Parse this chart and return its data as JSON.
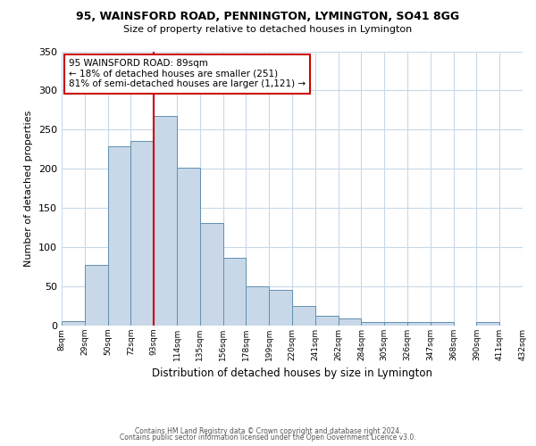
{
  "title1": "95, WAINSFORD ROAD, PENNINGTON, LYMINGTON, SO41 8GG",
  "title2": "Size of property relative to detached houses in Lymington",
  "xlabel": "Distribution of detached houses by size in Lymington",
  "ylabel": "Number of detached properties",
  "footnote1": "Contains HM Land Registry data © Crown copyright and database right 2024.",
  "footnote2": "Contains public sector information licensed under the Open Government Licence v3.0.",
  "bar_labels": [
    "8sqm",
    "29sqm",
    "50sqm",
    "72sqm",
    "93sqm",
    "114sqm",
    "135sqm",
    "156sqm",
    "178sqm",
    "199sqm",
    "220sqm",
    "241sqm",
    "262sqm",
    "284sqm",
    "305sqm",
    "326sqm",
    "347sqm",
    "368sqm",
    "390sqm",
    "411sqm",
    "432sqm"
  ],
  "bar_values": [
    6,
    77,
    229,
    236,
    267,
    201,
    131,
    87,
    50,
    46,
    25,
    12,
    9,
    5,
    5,
    4,
    4,
    0,
    4,
    0
  ],
  "bar_color": "#c8d8e8",
  "bar_edge_color": "#6090b0",
  "vline_x": 4,
  "vline_color": "#cc0000",
  "ylim": [
    0,
    350
  ],
  "yticks": [
    0,
    50,
    100,
    150,
    200,
    250,
    300,
    350
  ],
  "annotation_text": "95 WAINSFORD ROAD: 89sqm\n← 18% of detached houses are smaller (251)\n81% of semi-detached houses are larger (1,121) →",
  "annotation_box_color": "#ffffff",
  "annotation_box_edge": "#cc0000",
  "background_color": "#ffffff",
  "grid_color": "#c8d8e8"
}
